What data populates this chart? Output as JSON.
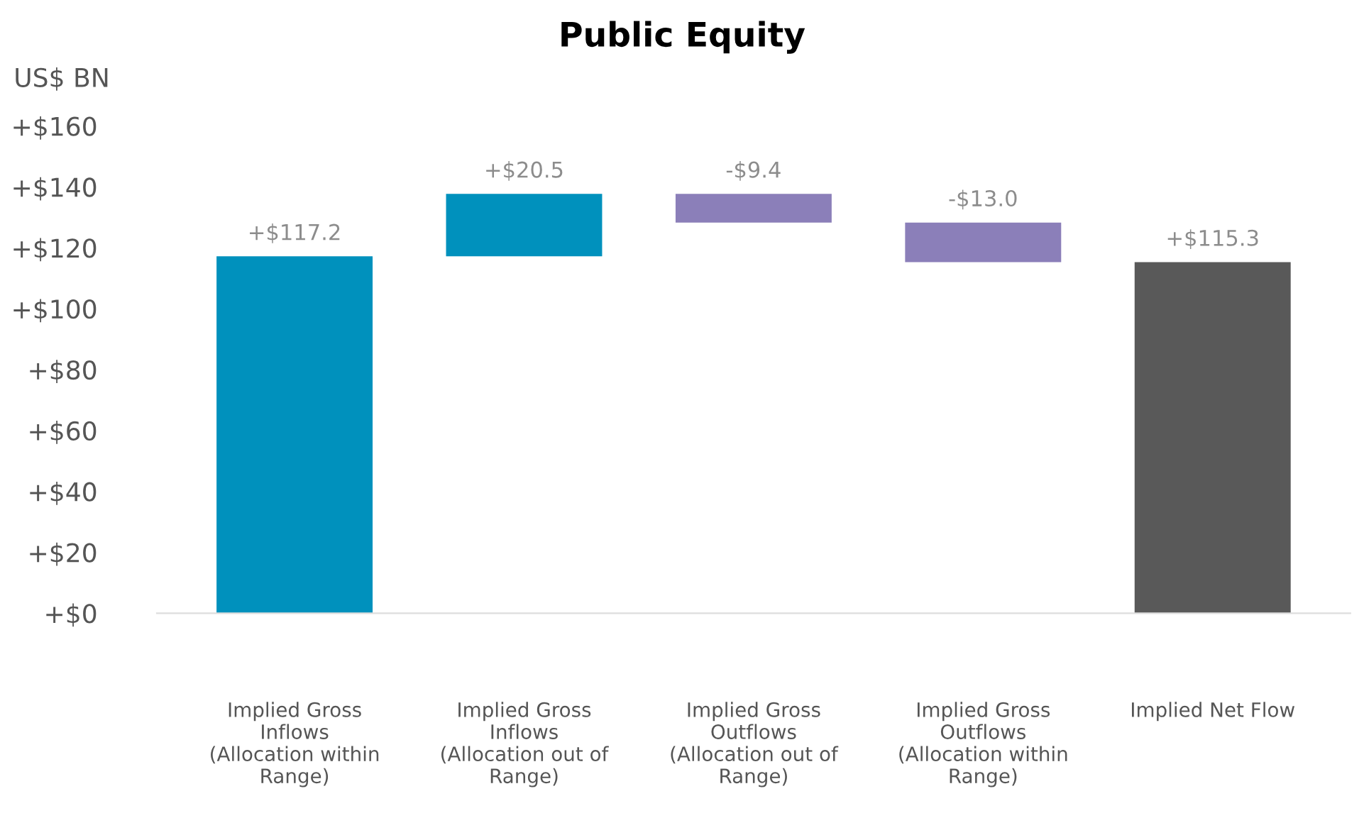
{
  "chart_data": {
    "type": "bar",
    "title": "Public Equity",
    "ylabel": "US$ BN",
    "categories": [
      "Implied Gross Inflows (Allocation within Range)",
      "Implied Gross Inflows (Allocation out of Range)",
      "Implied Gross Outflows (Allocation out of Range)",
      "Implied Gross Outflows (Allocation within Range)",
      "Implied Net Flow"
    ],
    "values": [
      117.2,
      20.5,
      -9.4,
      -13.0,
      115.3
    ],
    "base": [
      0,
      117.2,
      137.7,
      128.3,
      0
    ],
    "colors": [
      "#0091bd",
      "#0091bd",
      "#8b7fb9",
      "#8b7fb9",
      "#595959"
    ],
    "value_labels": [
      "+$117.2",
      "+$20.5",
      "-$9.4",
      "-$13.0",
      "+$115.3"
    ],
    "ylim": [
      0,
      160
    ],
    "yticks": [
      {
        "value": 0,
        "label": "+$0"
      },
      {
        "value": 20,
        "label": "+$20"
      },
      {
        "value": 40,
        "label": "+$40"
      },
      {
        "value": 60,
        "label": "+$60"
      },
      {
        "value": 80,
        "label": "+$80"
      },
      {
        "value": 100,
        "label": "+$100"
      },
      {
        "value": 120,
        "label": "+$120"
      },
      {
        "value": 140,
        "label": "+$140"
      },
      {
        "value": 160,
        "label": "+$160"
      }
    ],
    "grid": false,
    "legend": false
  }
}
